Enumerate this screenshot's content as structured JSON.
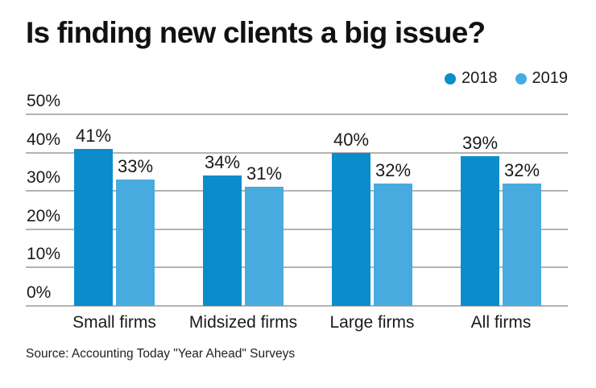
{
  "title": "Is finding new clients a big issue?",
  "source": "Source: Accounting Today \"Year Ahead\" Surveys",
  "colors": {
    "series_2018": "#0c8dcb",
    "series_2019": "#47abe0",
    "gridline": "#b3b3b3",
    "text": "#1a1a1a"
  },
  "legend": {
    "items": [
      {
        "label": "2018",
        "color": "#0c8dcb"
      },
      {
        "label": "2019",
        "color": "#47abe0"
      }
    ]
  },
  "chart_data": {
    "type": "bar",
    "categories": [
      "Small firms",
      "Midsized firms",
      "Large firms",
      "All firms"
    ],
    "series": [
      {
        "name": "2018",
        "color": "#0c8dcb",
        "values": [
          41,
          34,
          40,
          39
        ]
      },
      {
        "name": "2019",
        "color": "#47abe0",
        "values": [
          33,
          31,
          32,
          32
        ]
      }
    ],
    "title": "Is finding new clients a big issue?",
    "xlabel": "",
    "ylabel": "",
    "ylim": [
      0,
      50
    ],
    "ytick_interval": 10,
    "ytick_labels": [
      "0%",
      "10%",
      "20%",
      "30%",
      "40%",
      "50%"
    ],
    "value_suffix": "%",
    "grid": true,
    "data_labels": true,
    "legend_position": "top-right"
  }
}
